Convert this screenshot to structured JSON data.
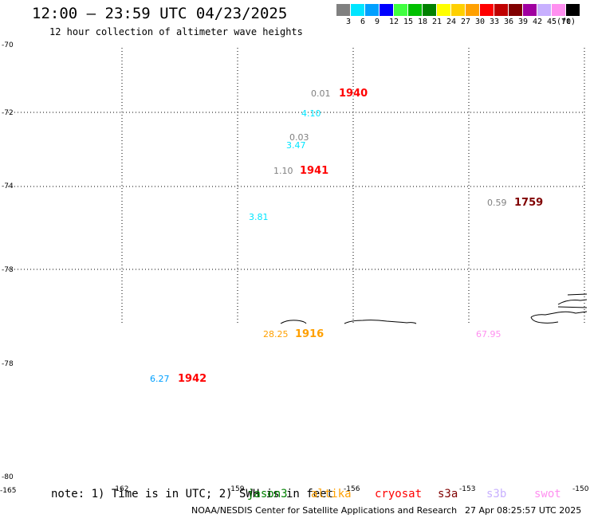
{
  "header": {
    "title": "12:00 – 23:59 UTC 04/23/2025",
    "subtitle": "12 hour collection of altimeter wave heights"
  },
  "legend": {
    "unit": "(ft)",
    "bins": [
      {
        "label": "3",
        "color": "#808080"
      },
      {
        "label": "6",
        "color": "#00e5ff"
      },
      {
        "label": "9",
        "color": "#00a0ff"
      },
      {
        "label": "12",
        "color": "#0000ff"
      },
      {
        "label": "15",
        "color": "#40ff40"
      },
      {
        "label": "18",
        "color": "#00c000"
      },
      {
        "label": "21",
        "color": "#008000"
      },
      {
        "label": "24",
        "color": "#ffff00"
      },
      {
        "label": "27",
        "color": "#ffd000"
      },
      {
        "label": "30",
        "color": "#ffa000"
      },
      {
        "label": "33",
        "color": "#ff0000"
      },
      {
        "label": "36",
        "color": "#c00000"
      },
      {
        "label": "39",
        "color": "#800000"
      },
      {
        "label": "42",
        "color": "#a000a0"
      },
      {
        "label": "45",
        "color": "#c8b0ff"
      },
      {
        "label": "70",
        "color": "#ff90f0"
      },
      {
        "label": "",
        "color": "#000000"
      }
    ]
  },
  "map": {
    "lat_labels": [
      "-70",
      "-72",
      "-74",
      "-78",
      "-78",
      "-80"
    ],
    "lon_labels": [
      "-165",
      "-162",
      "-159",
      "-156",
      "-153",
      "-150"
    ]
  },
  "observations": [
    {
      "swh": "0.01",
      "swh_color": "#808080",
      "time": "1940",
      "time_color": "#ff0000"
    },
    {
      "swh": "4.10",
      "swh_color": "#00e5ff",
      "time": "",
      "time_color": ""
    },
    {
      "swh": "0.03",
      "swh_color": "#808080",
      "time": "",
      "time_color": ""
    },
    {
      "swh": "3.47",
      "swh_color": "#00e5ff",
      "time": "",
      "time_color": ""
    },
    {
      "swh": "1.10",
      "swh_color": "#808080",
      "time": "1941",
      "time_color": "#ff0000"
    },
    {
      "swh": "3.81",
      "swh_color": "#00e5ff",
      "time": "",
      "time_color": ""
    },
    {
      "swh": "0.59",
      "swh_color": "#808080",
      "time": "1759",
      "time_color": "#800000"
    },
    {
      "swh": "28.25",
      "swh_color": "#ffa000",
      "time": "1916",
      "time_color": "#ffa000"
    },
    {
      "swh": "67.95",
      "swh_color": "#ff90f0",
      "time": "",
      "time_color": ""
    },
    {
      "swh": "6.27",
      "swh_color": "#00a0ff",
      "time": "1942",
      "time_color": "#ff0000"
    }
  ],
  "footer": {
    "note": "note: 1) Time is in UTC; 2) SWH is in feet",
    "satellites": [
      {
        "name": "jason3",
        "color": "#008000"
      },
      {
        "name": "altika",
        "color": "#ffa000"
      },
      {
        "name": "cryosat",
        "color": "#ff0000"
      },
      {
        "name": "s3a",
        "color": "#800000"
      },
      {
        "name": "s3b",
        "color": "#c8b0ff"
      },
      {
        "name": "swot",
        "color": "#ff90f0"
      }
    ],
    "org": "NOAA/NESDIS Center for Satellite Applications and Research",
    "timestamp": "27 Apr 08:25:57 UTC 2025"
  }
}
